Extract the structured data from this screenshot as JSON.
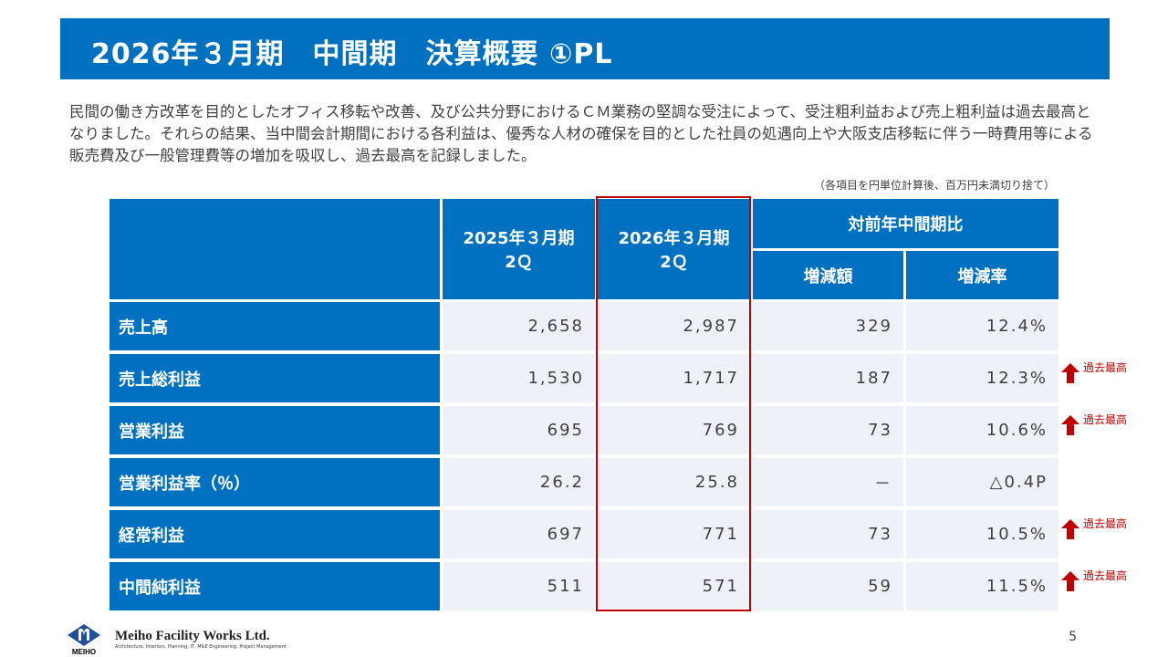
{
  "title": "2026年３月期　中間期　決算概要 ①PL",
  "lead": "民間の働き方改革を目的としたオフィス移転や改善、及び公共分野におけるＣＭ業務の堅調な受注によって、受注粗利益および売上粗利益は過去最高となりました。それらの結果、当中間会計期間における各利益は、優秀な人材の確保を目的とした社員の処遇向上や大阪支店移転に伴う一時費用等による販売費及び一般管理費等の増加を吸収し、過去最高を記録しました。",
  "note": "（各項目を円単位計算後、百万円未満切り捨て）",
  "table": {
    "headers": {
      "prev": "2025年３月期\n2Ｑ",
      "curr": "2026年３月期\n2Ｑ",
      "yoy": "対前年中間期比",
      "diff": "増減額",
      "rate": "増減率"
    },
    "rows": [
      {
        "label": "売上高",
        "prev": "2,658",
        "curr": "2,987",
        "diff": "329",
        "rate": "12.4%",
        "record": false
      },
      {
        "label": "売上総利益",
        "prev": "1,530",
        "curr": "1,717",
        "diff": "187",
        "rate": "12.3%",
        "record": true
      },
      {
        "label": "営業利益",
        "prev": "695",
        "curr": "769",
        "diff": "73",
        "rate": "10.6%",
        "record": true
      },
      {
        "label": "営業利益率（％）",
        "prev": "26.2",
        "curr": "25.8",
        "diff": "－",
        "rate": "△0.4P",
        "record": false
      },
      {
        "label": "経常利益",
        "prev": "697",
        "curr": "771",
        "diff": "73",
        "rate": "10.5%",
        "record": true
      },
      {
        "label": "中間純利益",
        "prev": "511",
        "curr": "571",
        "diff": "59",
        "rate": "11.5%",
        "record": true
      }
    ]
  },
  "record_label": "過去最高",
  "footer": {
    "company": "Meiho Facility Works Ltd.",
    "tagline": "Architecture, Interiors, Planning, IT, M&E Engineering, Project Management",
    "logo_text": "MEIHO"
  },
  "page_number": "5",
  "colors": {
    "primary": "#0070c0",
    "highlight": "#c00000",
    "cell": "#eef2f8"
  }
}
